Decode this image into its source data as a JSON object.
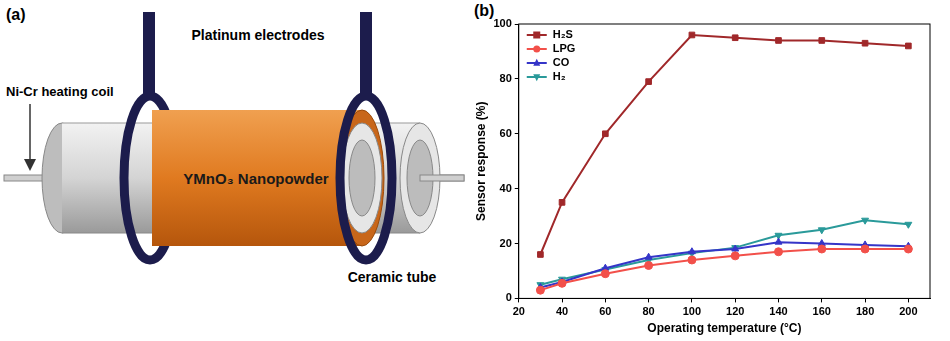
{
  "diagram": {
    "label": "(a)",
    "heating_coil": "Ni-Cr heating coil",
    "electrodes": "Platinum electrodes",
    "coating": "YMnO₃ Nanopowder",
    "tube": "Ceramic tube"
  },
  "chart_data": {
    "panel_label": "(b)",
    "type": "line",
    "x_label": "Operating temperature (°C)",
    "y_label": "Sensor response (%)",
    "x": [
      30,
      40,
      60,
      80,
      100,
      120,
      140,
      160,
      180,
      200
    ],
    "series": [
      {
        "name": "H₂S",
        "color": "#a0282a",
        "marker": "square",
        "values": [
          16,
          35,
          60,
          79,
          96,
          95,
          94,
          94,
          93,
          92
        ]
      },
      {
        "name": "LPG",
        "color": "#f2504a",
        "marker": "circle",
        "values": [
          3,
          5.5,
          9,
          12,
          14,
          15.5,
          17,
          18,
          18,
          18
        ]
      },
      {
        "name": "CO",
        "color": "#3535c8",
        "marker": "triangle",
        "values": [
          4,
          6,
          11,
          15,
          17,
          18,
          20.5,
          20,
          19.5,
          19
        ]
      },
      {
        "name": "H₂",
        "color": "#2a9a9a",
        "marker": "triangle_down",
        "values": [
          5,
          7,
          10.5,
          14,
          16.5,
          18.5,
          23,
          25,
          28.5,
          27
        ]
      }
    ],
    "xlim": [
      20,
      210
    ],
    "xticks": [
      20,
      40,
      60,
      80,
      100,
      120,
      140,
      160,
      180,
      200
    ],
    "ylim": [
      0,
      100
    ],
    "yticks": [
      0,
      20,
      40,
      60,
      80,
      100
    ],
    "grid": false,
    "legend": "upper left"
  }
}
